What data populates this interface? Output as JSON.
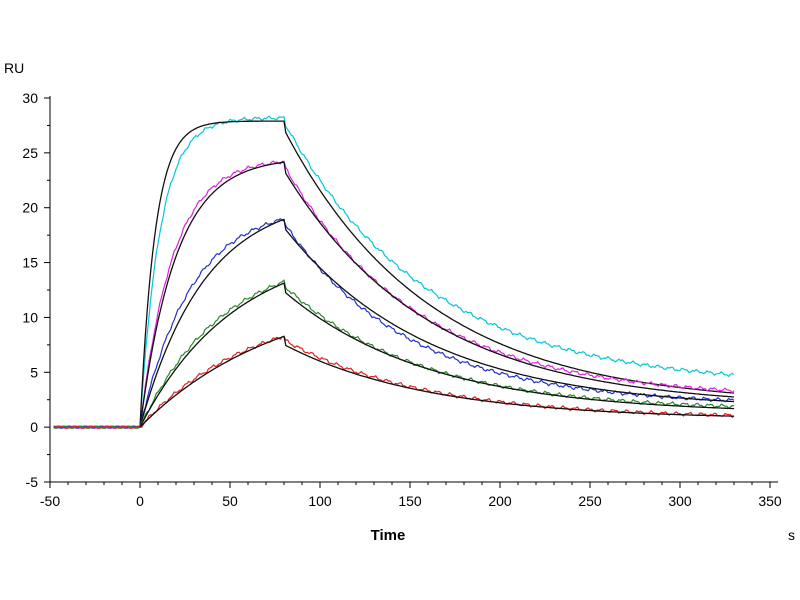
{
  "chart_data": {
    "type": "line",
    "xlabel": "Time",
    "x_unit": "s",
    "ylabel": "RU",
    "xlim": [
      -50,
      350
    ],
    "ylim": [
      -5,
      30
    ],
    "x_ticks": [
      -50,
      0,
      50,
      100,
      150,
      200,
      250,
      300,
      350
    ],
    "y_ticks": [
      -5,
      0,
      5,
      10,
      15,
      20,
      25,
      30
    ],
    "grid": false,
    "legend": "none",
    "association_end": 80,
    "x_end": 330,
    "series": [
      {
        "role": "measured",
        "color": "#00c8d8",
        "rmax": 28.2,
        "kon": 0.09,
        "koff": 0.0125,
        "end": 3.7
      },
      {
        "role": "fit",
        "color": "#111111",
        "rmax": 27.9,
        "kon": 0.12,
        "koff": 0.0125,
        "end": 2.0
      },
      {
        "role": "measured",
        "color": "#e020e0",
        "rmax": 24.5,
        "kon": 0.055,
        "koff": 0.0135,
        "end": 2.6
      },
      {
        "role": "fit",
        "color": "#111111",
        "rmax": 24.6,
        "kon": 0.05,
        "koff": 0.0125,
        "end": 1.8
      },
      {
        "role": "measured",
        "color": "#2030d0",
        "rmax": 20.2,
        "kon": 0.035,
        "koff": 0.0145,
        "end": 2.0
      },
      {
        "role": "fit",
        "color": "#111111",
        "rmax": 21.2,
        "kon": 0.028,
        "koff": 0.0125,
        "end": 1.6
      },
      {
        "role": "measured",
        "color": "#2a8a2a",
        "rmax": 16.0,
        "kon": 0.022,
        "koff": 0.0135,
        "end": 1.5
      },
      {
        "role": "fit",
        "color": "#111111",
        "rmax": 16.8,
        "kon": 0.019,
        "koff": 0.0125,
        "end": 1.2
      },
      {
        "role": "measured",
        "color": "#e02020",
        "rmax": 11.5,
        "kon": 0.016,
        "koff": 0.013,
        "end": 0.8
      },
      {
        "role": "fit",
        "color": "#111111",
        "rmax": 12.8,
        "kon": 0.013,
        "koff": 0.0125,
        "end": 0.7
      }
    ]
  }
}
